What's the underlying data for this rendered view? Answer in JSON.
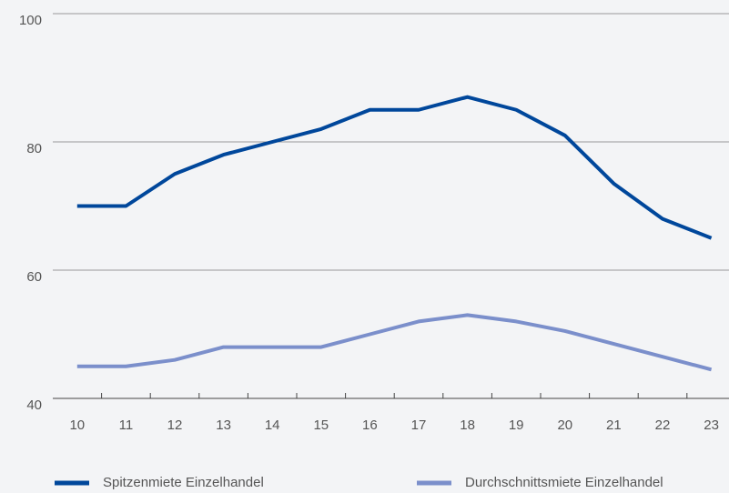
{
  "chart_data": {
    "type": "line",
    "categories": [
      "10",
      "11",
      "12",
      "13",
      "14",
      "15",
      "16",
      "17",
      "18",
      "19",
      "20",
      "21",
      "22",
      "23"
    ],
    "series": [
      {
        "name": "Spitzenmiete Einzelhandel",
        "color": "#00479b",
        "values": [
          70,
          70,
          75,
          78,
          80,
          82,
          85,
          85,
          87,
          85,
          81,
          73.5,
          68,
          65
        ]
      },
      {
        "name": "Durchschnittsmiete Einzelhandel",
        "color": "#7b8fcb",
        "values": [
          45,
          45,
          46,
          48,
          48,
          48,
          50,
          52,
          53,
          52,
          50.5,
          48.5,
          46.5,
          44.5
        ]
      }
    ],
    "ylim": [
      40,
      100
    ],
    "yticks": [
      40,
      60,
      80,
      100
    ],
    "grid": true
  }
}
